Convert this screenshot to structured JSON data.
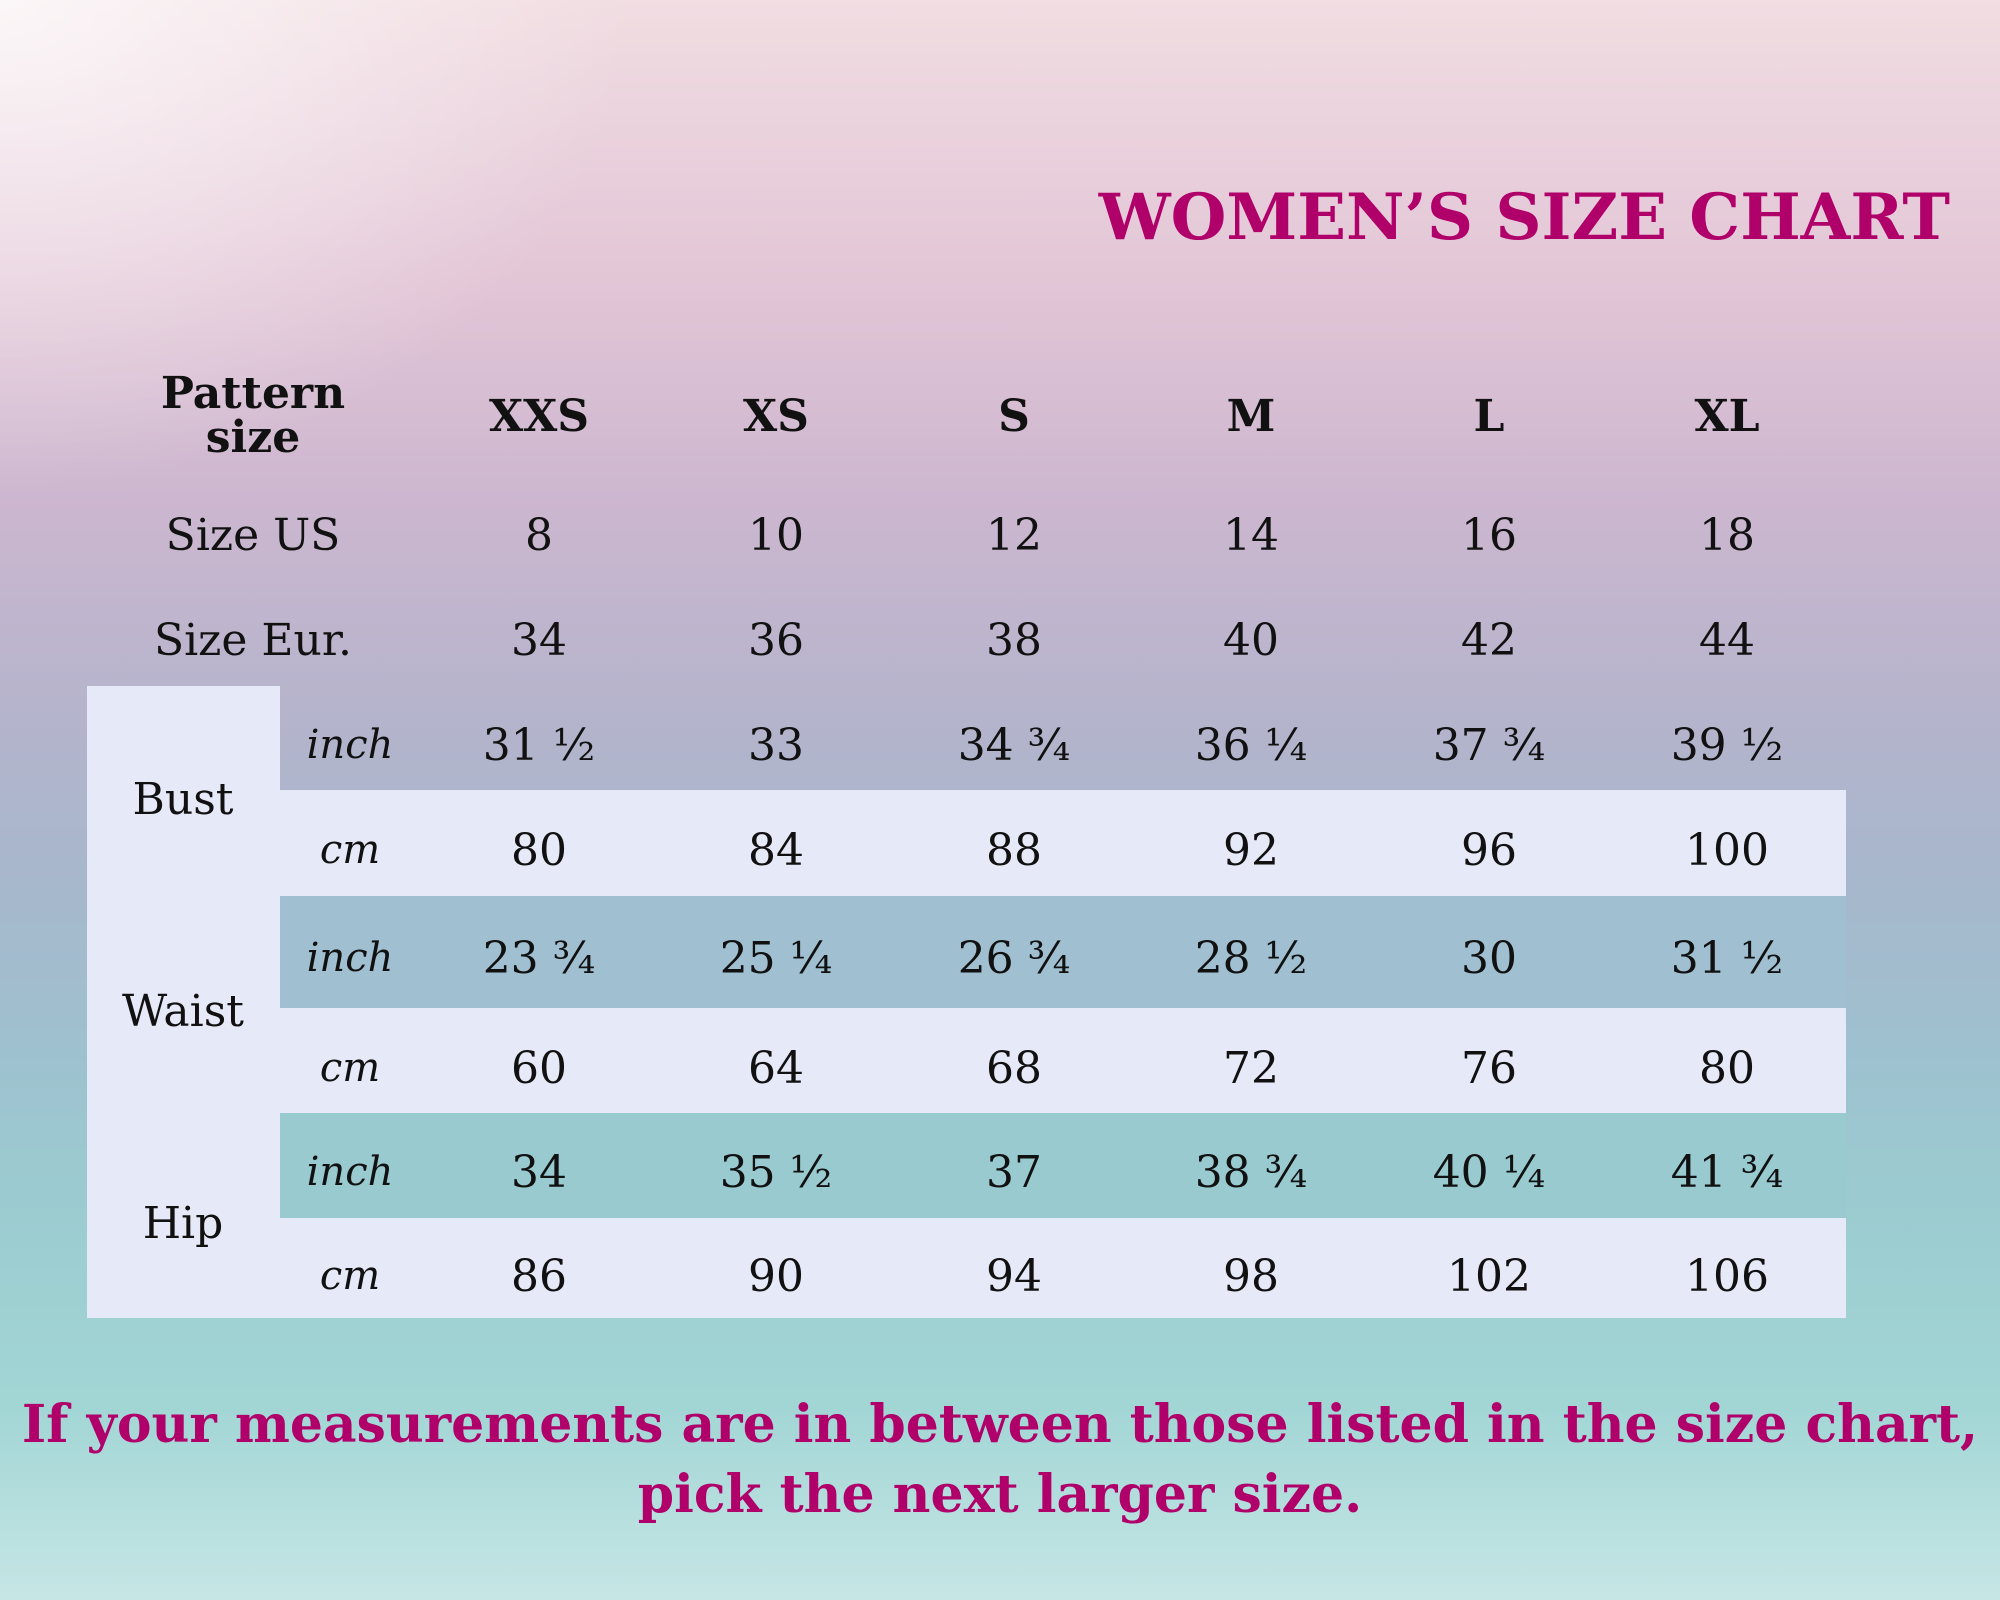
{
  "title": "WOMEN’S SIZE CHART",
  "header": {
    "pattern_line1": "Pattern",
    "pattern_line2": "size",
    "sizes": [
      "XXS",
      "XS",
      "S",
      "M",
      "L",
      "XL"
    ]
  },
  "rows": {
    "size_us": {
      "label": "Size US",
      "values": [
        "8",
        "10",
        "12",
        "14",
        "16",
        "18"
      ]
    },
    "size_eur": {
      "label": "Size Eur.",
      "values": [
        "34",
        "36",
        "38",
        "40",
        "42",
        "44"
      ]
    }
  },
  "measurements": [
    {
      "label": "Bust",
      "inch": {
        "unit": "inch",
        "values": [
          "31 ½",
          "33",
          "34 ¾",
          "36 ¼",
          "37 ¾",
          "39 ½"
        ]
      },
      "cm": {
        "unit": "cm",
        "values": [
          "80",
          "84",
          "88",
          "92",
          "96",
          "100"
        ]
      }
    },
    {
      "label": "Waist",
      "inch": {
        "unit": "inch",
        "values": [
          "23 ¾",
          "25 ¼",
          "26 ¾",
          "28 ½",
          "30",
          "31 ½"
        ]
      },
      "cm": {
        "unit": "cm",
        "values": [
          "60",
          "64",
          "68",
          "72",
          "76",
          "80"
        ]
      }
    },
    {
      "label": "Hip",
      "inch": {
        "unit": "inch",
        "values": [
          "34",
          "35 ½",
          "37",
          "38 ¾",
          "40 ¼",
          "41 ¾"
        ]
      },
      "cm": {
        "unit": "cm",
        "values": [
          "86",
          "90",
          "94",
          "98",
          "102",
          "106"
        ]
      }
    }
  ],
  "footer": {
    "line1": "If your measurements are in between those listed in the size chart,",
    "line2": "pick the next larger size."
  },
  "colors": {
    "accent": "#b0006a",
    "band_light": "#e6eaf8",
    "waist_inch_band": "#a0bfd1",
    "hip_inch_band": "#98cad0"
  }
}
